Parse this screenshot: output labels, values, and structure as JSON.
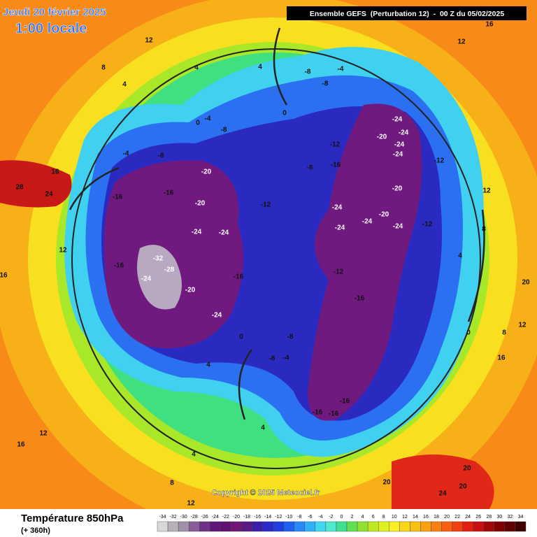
{
  "header": {
    "date": "Jeudi 20 février 2025",
    "time": "1:00 locale",
    "model": "Ensemble GEFS  (Perturbation 12)  -  00 Z du 05/02/2025"
  },
  "map": {
    "labels": [
      12,
      8,
      4,
      4,
      -8,
      -4,
      -8,
      0,
      -8,
      -4,
      -8,
      -20,
      -16,
      -16,
      -20,
      -12,
      -24,
      -24,
      -16,
      -28,
      -32,
      -24,
      -20,
      -24,
      -16,
      -12,
      -16,
      -12,
      -16,
      -8,
      -24,
      -20,
      -24,
      -24,
      -24,
      -12,
      -20,
      -24,
      -24,
      -24,
      -20,
      -24,
      -12,
      -16,
      -16,
      -16,
      -8,
      -8,
      -4,
      0,
      4,
      4,
      4,
      8,
      12,
      12,
      16,
      20,
      20,
      24,
      20,
      28,
      24,
      16,
      12,
      16,
      12,
      8,
      4,
      0,
      8,
      12,
      16,
      20,
      16,
      12,
      4,
      -4,
      0
    ]
  },
  "copyright": "Copyright © 2025 Meteociel.fr",
  "footer": {
    "title": "Température 850hPa",
    "subtitle": "(+ 360h)"
  },
  "legend": {
    "ticks": [
      -34,
      -32,
      -30,
      -28,
      -26,
      -24,
      -22,
      -20,
      -18,
      -16,
      -14,
      -12,
      -10,
      -8,
      -6,
      -4,
      -2,
      0,
      2,
      4,
      6,
      8,
      10,
      12,
      14,
      16,
      18,
      20,
      22,
      24,
      26,
      28,
      30,
      32,
      34
    ],
    "colors": [
      "#d8d8d8",
      "#b8b0b8",
      "#a090a8",
      "#885c98",
      "#703088",
      "#601878",
      "#601070",
      "#701478",
      "#5a1a80",
      "#3a1ea8",
      "#2a2ac8",
      "#1e40e0",
      "#2060f0",
      "#2888f8",
      "#30b0f8",
      "#40d8f0",
      "#50e8d0",
      "#40e090",
      "#60e050",
      "#90e030",
      "#c0e820",
      "#e0f020",
      "#f8f020",
      "#f8d818",
      "#f8c010",
      "#f8a010",
      "#f88010",
      "#f86010",
      "#f04010",
      "#e02010",
      "#c81010",
      "#a00808",
      "#800000",
      "#600000",
      "#400000"
    ]
  }
}
